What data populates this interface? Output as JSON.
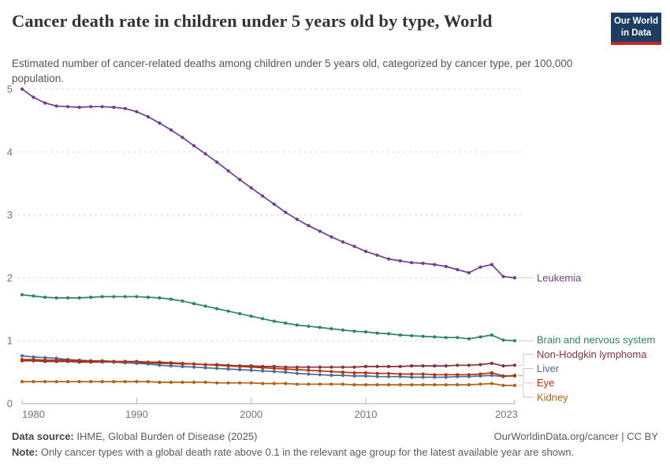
{
  "header": {
    "title": "Cancer death rate in children under 5 years old by type, World",
    "subtitle": "Estimated number of cancer-related deaths among children under 5 years old, categorized by cancer type, per 100,000 population.",
    "logo": {
      "line1": "Our World",
      "line2": "in Data",
      "bg_color": "#1d3d63",
      "accent_color": "#c2281f"
    }
  },
  "chart_data": {
    "type": "line",
    "title": "Cancer death rate in children under 5 years old by type, World",
    "xlabel": "",
    "ylabel": "",
    "ylim": [
      0,
      5
    ],
    "yticks": [
      0,
      1,
      2,
      3,
      4,
      5
    ],
    "xticks": [
      1980,
      1990,
      2000,
      2010,
      2023
    ],
    "grid": true,
    "legend_position": "right-end-of-line-labels",
    "x": [
      1980,
      1981,
      1982,
      1983,
      1984,
      1985,
      1986,
      1987,
      1988,
      1989,
      1990,
      1991,
      1992,
      1993,
      1994,
      1995,
      1996,
      1997,
      1998,
      1999,
      2000,
      2001,
      2002,
      2003,
      2004,
      2005,
      2006,
      2007,
      2008,
      2009,
      2010,
      2011,
      2012,
      2013,
      2014,
      2015,
      2016,
      2017,
      2018,
      2019,
      2020,
      2021,
      2022,
      2023
    ],
    "series": [
      {
        "name": "Leukemia",
        "color": "#6D3E91",
        "values": [
          5.0,
          4.87,
          4.78,
          4.73,
          4.72,
          4.71,
          4.72,
          4.72,
          4.71,
          4.69,
          4.64,
          4.56,
          4.46,
          4.35,
          4.23,
          4.1,
          3.97,
          3.84,
          3.7,
          3.56,
          3.43,
          3.3,
          3.17,
          3.04,
          2.93,
          2.83,
          2.74,
          2.65,
          2.57,
          2.5,
          2.42,
          2.36,
          2.3,
          2.27,
          2.24,
          2.23,
          2.21,
          2.18,
          2.13,
          2.08,
          2.17,
          2.21,
          2.02,
          2.0
        ]
      },
      {
        "name": "Brain and nervous system",
        "color": "#2C8465",
        "values": [
          1.73,
          1.71,
          1.69,
          1.68,
          1.68,
          1.68,
          1.69,
          1.7,
          1.7,
          1.7,
          1.7,
          1.69,
          1.68,
          1.66,
          1.63,
          1.59,
          1.55,
          1.51,
          1.47,
          1.43,
          1.39,
          1.35,
          1.31,
          1.28,
          1.25,
          1.23,
          1.21,
          1.19,
          1.17,
          1.15,
          1.14,
          1.12,
          1.11,
          1.09,
          1.08,
          1.07,
          1.06,
          1.05,
          1.05,
          1.03,
          1.06,
          1.09,
          1.01,
          1.0
        ]
      },
      {
        "name": "Non-Hodgkin lymphoma",
        "color": "#883039",
        "values": [
          0.68,
          0.68,
          0.67,
          0.67,
          0.67,
          0.66,
          0.66,
          0.66,
          0.66,
          0.65,
          0.65,
          0.65,
          0.64,
          0.64,
          0.63,
          0.63,
          0.62,
          0.62,
          0.61,
          0.6,
          0.6,
          0.59,
          0.59,
          0.58,
          0.58,
          0.58,
          0.58,
          0.58,
          0.58,
          0.58,
          0.59,
          0.59,
          0.59,
          0.59,
          0.6,
          0.6,
          0.6,
          0.6,
          0.61,
          0.61,
          0.62,
          0.64,
          0.6,
          0.61
        ]
      },
      {
        "name": "Liver",
        "color": "#4C6A9C",
        "values": [
          0.76,
          0.74,
          0.73,
          0.72,
          0.7,
          0.69,
          0.68,
          0.67,
          0.66,
          0.65,
          0.64,
          0.63,
          0.61,
          0.6,
          0.59,
          0.58,
          0.57,
          0.56,
          0.55,
          0.54,
          0.53,
          0.52,
          0.51,
          0.5,
          0.48,
          0.47,
          0.46,
          0.45,
          0.45,
          0.44,
          0.44,
          0.43,
          0.43,
          0.43,
          0.42,
          0.42,
          0.42,
          0.42,
          0.43,
          0.43,
          0.44,
          0.45,
          0.43,
          0.45
        ]
      },
      {
        "name": "Eye",
        "color": "#B13507",
        "values": [
          0.7,
          0.7,
          0.69,
          0.69,
          0.69,
          0.68,
          0.68,
          0.68,
          0.67,
          0.67,
          0.67,
          0.66,
          0.66,
          0.65,
          0.64,
          0.63,
          0.62,
          0.61,
          0.6,
          0.59,
          0.58,
          0.57,
          0.56,
          0.55,
          0.54,
          0.53,
          0.52,
          0.51,
          0.5,
          0.49,
          0.49,
          0.48,
          0.48,
          0.47,
          0.47,
          0.47,
          0.46,
          0.46,
          0.46,
          0.46,
          0.47,
          0.49,
          0.44,
          0.44
        ]
      },
      {
        "name": "Kidney",
        "color": "#B16214",
        "values": [
          0.35,
          0.35,
          0.35,
          0.35,
          0.35,
          0.35,
          0.35,
          0.35,
          0.35,
          0.35,
          0.35,
          0.35,
          0.34,
          0.34,
          0.34,
          0.34,
          0.34,
          0.33,
          0.33,
          0.33,
          0.33,
          0.32,
          0.32,
          0.32,
          0.31,
          0.31,
          0.31,
          0.31,
          0.31,
          0.3,
          0.3,
          0.3,
          0.3,
          0.3,
          0.3,
          0.3,
          0.3,
          0.3,
          0.3,
          0.3,
          0.31,
          0.32,
          0.29,
          0.29
        ]
      }
    ]
  },
  "footer": {
    "data_source_label": "Data source:",
    "data_source_value": "IHME, Global Burden of Disease (2025)",
    "attribution": "OurWorldinData.org/cancer | CC BY",
    "note_label": "Note:",
    "note_value": "Only cancer types with a global death rate above 0.1 in the relevant age group for the latest available year are shown."
  }
}
